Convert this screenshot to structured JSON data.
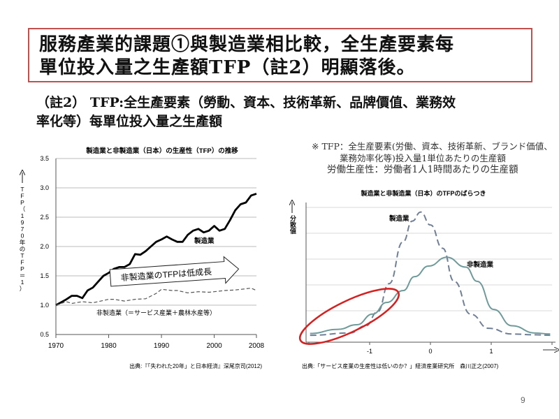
{
  "title": {
    "line1": "服務產業的課題①與製造業相比較，全生產要素每",
    "line2": "單位投入量之生產額TFP（註2）明顯落後。"
  },
  "note": {
    "line1": "（註2） TFP:全生產要素（勞動、資本、技術革新、品牌價值、業務效",
    "line2": "率化等）每單位投入量之生產額"
  },
  "jp_note": {
    "line1": "※ TFP：全生産要素(労働、資本、技術革新、ブランド価値、",
    "line2": "業務効率化等)投入量1単位あたりの生産額",
    "line3": "労働生産性：労働者1人1時間あたりの生産額"
  },
  "page_number": "9",
  "colors": {
    "title_border": "#c0504d",
    "ellipse": "#d62020",
    "dist_line": "#6f9a9a",
    "dash_line": "#6f7f96"
  },
  "chart_data": [
    {
      "type": "line",
      "title": "製造業と非製造業（日本）の生産性（TFP）の推移",
      "ylabel": "TFP（1970年のTFP＝1）",
      "xlabel": "",
      "xlim": [
        1970,
        2008
      ],
      "ylim": [
        0.5,
        3.5
      ],
      "xticks": [
        "1970",
        "1980",
        "1990",
        "2000",
        "2008"
      ],
      "yticks": [
        "0.5",
        "1.0",
        "1.5",
        "2.0",
        "2.5",
        "3.0",
        "3.5"
      ],
      "grid": true,
      "source": "出典:『「失われた20年」と日本経済』深尾京司(2012)",
      "annotation": "非製造業のTFPは低成長",
      "series": [
        {
          "name": "製造業",
          "style": "solid",
          "x": [
            1970,
            1971,
            1972,
            1973,
            1974,
            1975,
            1976,
            1977,
            1978,
            1979,
            1980,
            1981,
            1982,
            1983,
            1984,
            1985,
            1986,
            1987,
            1988,
            1989,
            1990,
            1991,
            1992,
            1993,
            1994,
            1995,
            1996,
            1997,
            1998,
            1999,
            2000,
            2001,
            2002,
            2003,
            2004,
            2005,
            2006,
            2007,
            2008
          ],
          "values": [
            1.0,
            1.05,
            1.1,
            1.16,
            1.16,
            1.12,
            1.25,
            1.3,
            1.4,
            1.5,
            1.55,
            1.62,
            1.65,
            1.65,
            1.7,
            1.87,
            1.86,
            1.92,
            2.0,
            2.08,
            2.12,
            2.17,
            2.12,
            2.08,
            2.08,
            2.2,
            2.27,
            2.3,
            2.24,
            2.27,
            2.35,
            2.27,
            2.3,
            2.45,
            2.62,
            2.72,
            2.75,
            2.87,
            2.9
          ]
        },
        {
          "name": "非製造業（＝サービス産業＋農林水産等）",
          "style": "dashed",
          "x": [
            1970,
            1972,
            1973,
            1975,
            1977,
            1980,
            1981,
            1983,
            1985,
            1987,
            1989,
            1990,
            1992,
            1993,
            1995,
            1997,
            1999,
            2000,
            2002,
            2004,
            2006,
            2007,
            2008
          ],
          "values": [
            1.0,
            1.06,
            1.03,
            1.06,
            1.04,
            1.1,
            1.1,
            1.07,
            1.1,
            1.11,
            1.2,
            1.27,
            1.25,
            1.25,
            1.21,
            1.23,
            1.22,
            1.23,
            1.25,
            1.26,
            1.28,
            1.29,
            1.25
          ]
        }
      ]
    },
    {
      "type": "line",
      "title": "製造業と非製造業（日本）のTFPのばらつき",
      "ylabel": "分散値",
      "xlabel": "",
      "xlim": [
        -2,
        2
      ],
      "ylim": [
        0,
        5.2
      ],
      "xticks": [
        "-1",
        "0",
        "1"
      ],
      "grid": true,
      "source": "出典:「サービス産業の生産性は低いのか？」経済産業研究所　森川正之(2007)",
      "series": [
        {
          "name": "製造業",
          "style": "dashed",
          "x": [
            -1.98,
            -1.33,
            -1.06,
            -0.87,
            -0.68,
            -0.45,
            -0.3,
            -0.16,
            0.0,
            0.2,
            0.39,
            0.66,
            0.96,
            1.34,
            1.72,
            1.97
          ],
          "values": [
            0.05,
            0.14,
            0.42,
            0.96,
            2.05,
            3.67,
            4.47,
            4.82,
            4.32,
            3.42,
            2.14,
            0.87,
            0.32,
            0.1,
            0.07,
            0.05
          ]
        },
        {
          "name": "非製造業",
          "style": "solid",
          "x": [
            -1.98,
            -1.52,
            -1.21,
            -0.95,
            -0.72,
            -0.45,
            -0.26,
            -0.03,
            0.27,
            0.58,
            0.77,
            1.04,
            1.34,
            1.72,
            1.97
          ],
          "values": [
            0.12,
            0.28,
            0.46,
            0.87,
            1.32,
            1.78,
            2.32,
            2.73,
            3.07,
            2.69,
            2.14,
            1.05,
            0.42,
            0.14,
            0.1
          ]
        }
      ]
    }
  ]
}
